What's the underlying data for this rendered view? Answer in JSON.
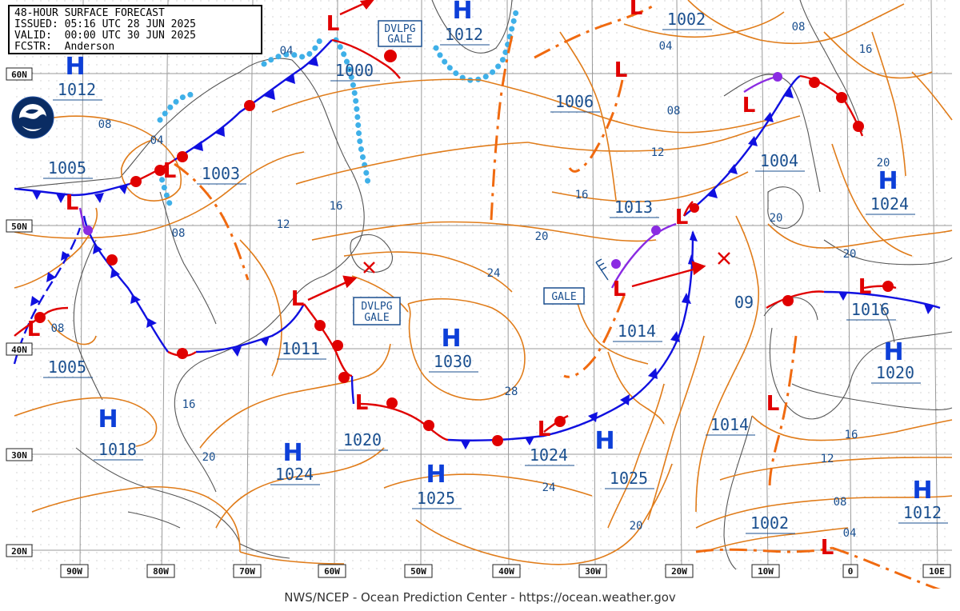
{
  "header": {
    "title": "48-HOUR SURFACE FORECAST",
    "issued": "ISSUED: 05:16 UTC 28 JUN 2025",
    "valid": "VALID:  00:00 UTC 30 JUN 2025",
    "forecaster": "FCSTR:  Anderson"
  },
  "logo": {
    "text": "NOAA"
  },
  "footer": {
    "text": "NWS/NCEP - Ocean Prediction Center - https://ocean.weather.gov"
  },
  "longitude_labels": [
    "90W",
    "80W",
    "70W",
    "60W",
    "50W",
    "40W",
    "30W",
    "20W",
    "10W",
    "0",
    "10E"
  ],
  "latitude_labels": [
    "60N",
    "50N",
    "40N",
    "30N",
    "20N"
  ],
  "highs": [
    {
      "value": "1012"
    },
    {
      "value": "1012"
    },
    {
      "value": "1030"
    },
    {
      "value": "1018"
    },
    {
      "value": "1024"
    },
    {
      "value": "1025"
    },
    {
      "value": "1024"
    },
    {
      "value": "1020"
    },
    {
      "value": "1012"
    }
  ],
  "lows": [
    {
      "value": "1005"
    },
    {
      "value": "1003"
    },
    {
      "value": "1000"
    },
    {
      "value": "1005"
    },
    {
      "value": "1011"
    },
    {
      "value": "1020"
    },
    {
      "value": "1024"
    },
    {
      "value": "1002"
    },
    {
      "value": "1006"
    },
    {
      "value": "1013"
    },
    {
      "value": "1014"
    },
    {
      "value": "1004"
    },
    {
      "value": "1016"
    },
    {
      "value": "1014"
    },
    {
      "value": "1025"
    },
    {
      "value": "1002"
    },
    {
      "value": "09"
    }
  ],
  "warnings": [
    {
      "line1": "DVLPG",
      "line2": "GALE"
    },
    {
      "line1": "DVLPG",
      "line2": "GALE"
    },
    {
      "line1": "GALE"
    }
  ],
  "isobar_labels": [
    "04",
    "04",
    "08",
    "08",
    "12",
    "16",
    "08",
    "16",
    "20",
    "24",
    "28",
    "20",
    "24",
    "20",
    "04",
    "08",
    "12",
    "16",
    "20",
    "20",
    "16",
    "12",
    "08",
    "04",
    "08",
    "16",
    "20"
  ],
  "colors": {
    "isobar": "#e07c1a",
    "cold_front": "#1010e0",
    "warm_front": "#e00000",
    "occluded_front": "#8a2be2",
    "ice_edge": "#3fb0e8",
    "coast": "#555555",
    "grid": "#9a9a9a"
  }
}
